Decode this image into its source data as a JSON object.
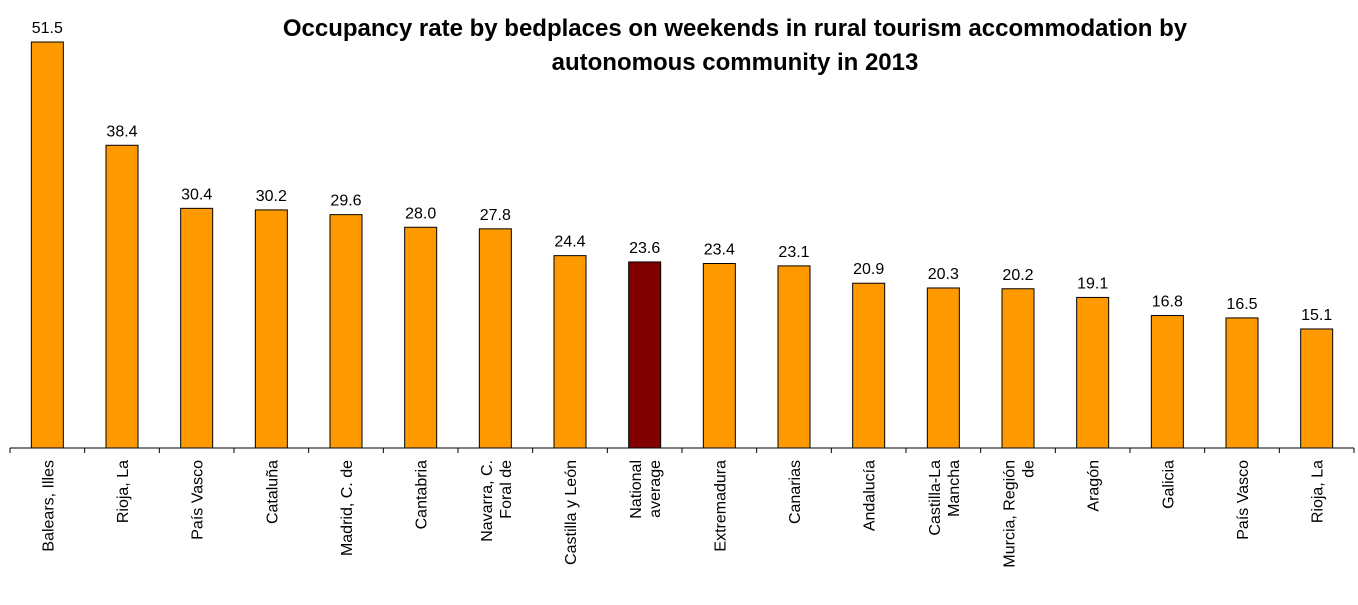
{
  "title_lines": [
    "Occupancy rate by bedplaces on weekends in rural tourism accommodation by",
    "autonomous community in 2013"
  ],
  "colors": {
    "bar": "#FF9900",
    "highlight": "#800000",
    "axis": "#000000"
  },
  "chart_data": {
    "type": "bar",
    "title": "Occupancy rate by bedplaces on weekends in rural tourism accommodation by autonomous community in 2013",
    "xlabel": "",
    "ylabel": "",
    "ylim": [
      0,
      51.5
    ],
    "grid": false,
    "highlight_category": "National average",
    "categories": [
      "Balears, Illes",
      "Rioja, La",
      "País Vasco",
      "Cataluña",
      "Madrid, C. de",
      "Cantabria",
      "Navarra, C. Foral de",
      "Castilla y León",
      "National average",
      "Extremadura",
      "Canarias",
      "Andalucía",
      "Castilla-La Mancha",
      "Murcia, Región de",
      "Aragón",
      "Galicia",
      "País Vasco",
      "Rioja, La"
    ],
    "tick_label_lines": [
      [
        "Balears, Illes"
      ],
      [
        "Rioja, La"
      ],
      [
        "País Vasco"
      ],
      [
        "Cataluña"
      ],
      [
        "Madrid, C. de"
      ],
      [
        "Cantabria"
      ],
      [
        "Navarra, C.",
        "Foral de"
      ],
      [
        "Castilla y León"
      ],
      [
        "National",
        "average"
      ],
      [
        "Extremadura"
      ],
      [
        "Canarias"
      ],
      [
        "Andalucía"
      ],
      [
        "Castilla-La",
        "Mancha"
      ],
      [
        "Murcia, Región",
        "de"
      ],
      [
        "Aragón"
      ],
      [
        "Galicia"
      ],
      [
        "País Vasco"
      ],
      [
        "Rioja, La"
      ]
    ],
    "values": [
      51.5,
      38.4,
      30.4,
      30.2,
      29.6,
      28.0,
      27.8,
      24.4,
      23.6,
      23.4,
      23.1,
      20.9,
      20.3,
      20.2,
      19.1,
      16.8,
      16.5,
      15.1
    ],
    "value_labels": [
      "51.5",
      "38.4",
      "30.4",
      "30.2",
      "29.6",
      "28.0",
      "27.8",
      "24.4",
      "23.6",
      "23.4",
      "23.1",
      "20.9",
      "20.3",
      "20.2",
      "19.1",
      "16.8",
      "16.5",
      "15.1"
    ]
  }
}
